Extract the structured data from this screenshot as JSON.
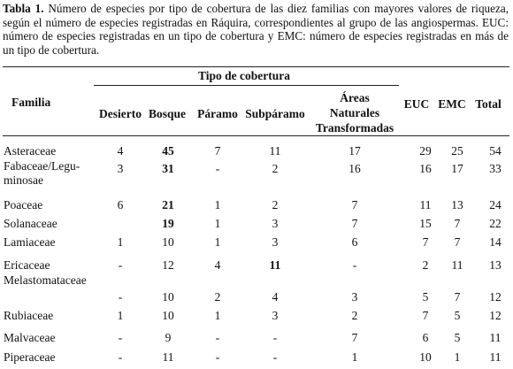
{
  "table": {
    "caption_label": "Tabla 1.",
    "caption_text": " Número de especies por tipo de cobertura de las diez familias con mayores valores de riqueza, según el número de especies registradas en Ráquira, correspondientes al grupo de las angiospermas. EUC: número de especies registradas en un tipo de cobertura y EMC: número de especies registradas en más de un tipo de cobertura.",
    "header": {
      "familia": "Familia",
      "group": "Tipo de cobertura",
      "desierto": "Desierto",
      "bosque": "Bosque",
      "paramo": "Páramo",
      "subparamo": "Subpáramo",
      "areas_1": "Áreas",
      "areas_2": "Naturales",
      "areas_3": "Transformadas",
      "euc": "EUC",
      "emc": "EMC",
      "total": "Total"
    },
    "rows": [
      {
        "familia": [
          "Asteraceae"
        ],
        "desierto": "4",
        "bosque": "45",
        "paramo": "7",
        "subparamo": "11",
        "areas": "17",
        "euc": "29",
        "emc": "25",
        "total": "54",
        "bold_bosque": true,
        "bold_subparamo": false
      },
      {
        "familia": [
          "Fabaceae/Legu-",
          "minosae"
        ],
        "desierto": "3",
        "bosque": "31",
        "paramo": "-",
        "subparamo": "2",
        "areas": "16",
        "euc": "16",
        "emc": "17",
        "total": "33",
        "bold_bosque": true,
        "bold_subparamo": false
      },
      {
        "familia": [
          "Poaceae"
        ],
        "desierto": "6",
        "bosque": "21",
        "paramo": "1",
        "subparamo": "2",
        "areas": "7",
        "euc": "11",
        "emc": "13",
        "total": "24",
        "bold_bosque": true,
        "bold_subparamo": false
      },
      {
        "familia": [
          "Solanaceae"
        ],
        "desierto": "",
        "bosque": "19",
        "paramo": "1",
        "subparamo": "3",
        "areas": "7",
        "euc": "15",
        "emc": "7",
        "total": "22",
        "bold_bosque": true,
        "bold_subparamo": false
      },
      {
        "familia": [
          "Lamiaceae"
        ],
        "desierto": "1",
        "bosque": "10",
        "paramo": "1",
        "subparamo": "3",
        "areas": "6",
        "euc": "7",
        "emc": "7",
        "total": "14",
        "bold_bosque": false,
        "bold_subparamo": false
      },
      {
        "familia": [
          "Ericaceae"
        ],
        "desierto": "-",
        "bosque": "12",
        "paramo": "4",
        "subparamo": "11",
        "areas": "-",
        "euc": "2",
        "emc": "11",
        "total": "13",
        "bold_bosque": false,
        "bold_subparamo": true
      },
      {
        "familia": [
          "Melastomataceae"
        ],
        "desierto": "-",
        "bosque": "10",
        "paramo": "2",
        "subparamo": "4",
        "areas": "3",
        "euc": "5",
        "emc": "7",
        "total": "12",
        "bold_bosque": false,
        "bold_subparamo": false
      },
      {
        "familia": [
          "Rubiaceae"
        ],
        "desierto": "1",
        "bosque": "10",
        "paramo": "1",
        "subparamo": "3",
        "areas": "2",
        "euc": "7",
        "emc": "5",
        "total": "12",
        "bold_bosque": false,
        "bold_subparamo": false
      },
      {
        "familia": [
          "Malvaceae"
        ],
        "desierto": "-",
        "bosque": "9",
        "paramo": "-",
        "subparamo": "-",
        "areas": "7",
        "euc": "6",
        "emc": "5",
        "total": "11",
        "bold_bosque": false,
        "bold_subparamo": false
      },
      {
        "familia": [
          "Piperaceae"
        ],
        "desierto": "-",
        "bosque": "11",
        "paramo": "-",
        "subparamo": "-",
        "areas": "1",
        "euc": "10",
        "emc": "1",
        "total": "11",
        "bold_bosque": false,
        "bold_subparamo": false
      }
    ]
  }
}
